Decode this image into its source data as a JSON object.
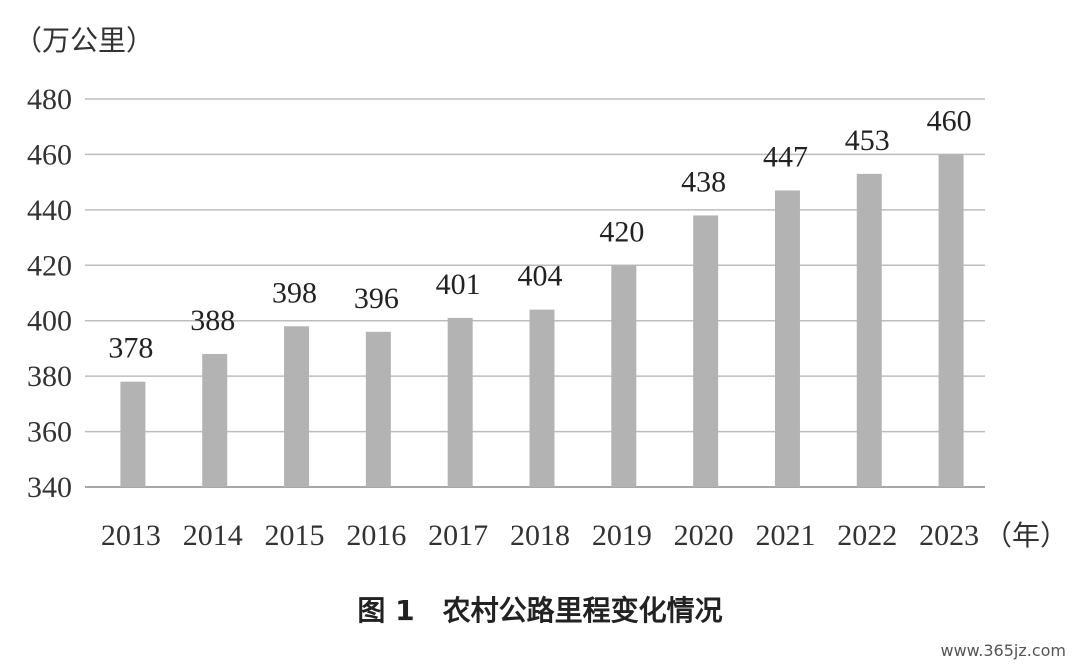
{
  "chart_data": {
    "type": "bar",
    "categories": [
      "2013",
      "2014",
      "2015",
      "2016",
      "2017",
      "2018",
      "2019",
      "2020",
      "2021",
      "2022",
      "2023"
    ],
    "values": [
      378,
      388,
      398,
      396,
      401,
      404,
      420,
      438,
      447,
      453,
      460
    ],
    "data_labels": [
      "378",
      "388",
      "398",
      "396",
      "401",
      "404",
      "420",
      "438",
      "447",
      "453",
      "460"
    ],
    "y_ticks": [
      "340",
      "360",
      "380",
      "400",
      "420",
      "440",
      "460",
      "480"
    ],
    "ylim": [
      340,
      480
    ],
    "ylabel": "（万公里）",
    "xlabel": "（年）",
    "title": "",
    "grid": true,
    "colors": {
      "bar": "#b3b3b3",
      "grid": "#bdbdbd",
      "axis": "#8a8a8a"
    }
  },
  "caption": "图 1　农村公路里程变化情况",
  "watermark": "www.365jz.com"
}
